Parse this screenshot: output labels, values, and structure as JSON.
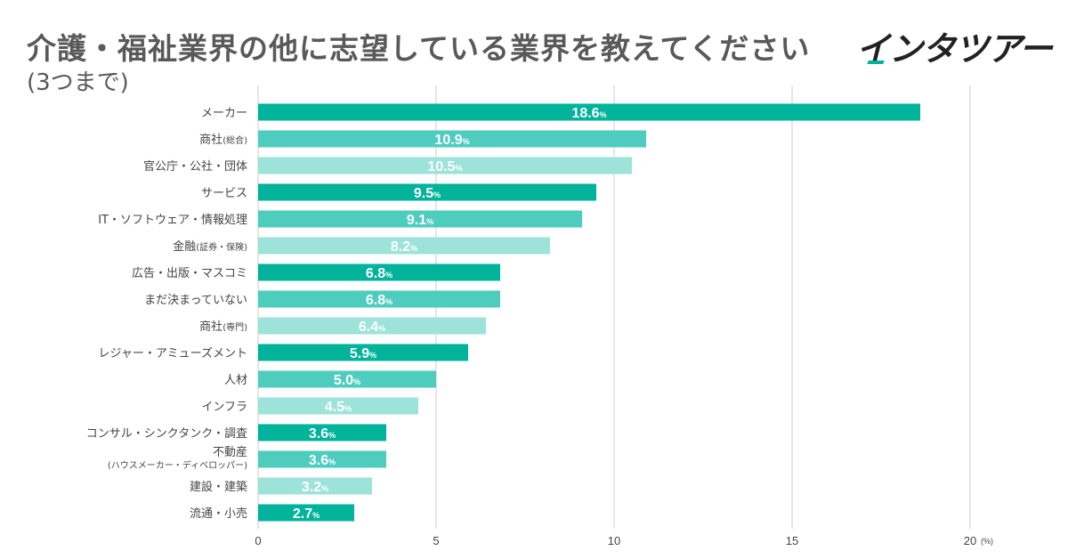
{
  "header": {
    "title": "介護・福祉業界の他に志望している業界を教えてください",
    "subtitle": "(3つまで)",
    "logo_text": "インタツアー"
  },
  "colors": {
    "series": [
      "#00b39a",
      "#4ecdbf",
      "#9de3d9"
    ],
    "grid": "#cccccc",
    "label_text": "#ffffff",
    "logo_accent": "#00b39a"
  },
  "chart_data": {
    "type": "bar",
    "orientation": "horizontal",
    "xlim": [
      0,
      20
    ],
    "x_ticks": [
      "0",
      "5",
      "10",
      "15",
      "20"
    ],
    "x_unit": "(%)",
    "grid": true,
    "value_suffix": "%",
    "categories": [
      {
        "main": "メーカー",
        "paren": ""
      },
      {
        "main": "商社",
        "paren": "(総合)"
      },
      {
        "main": "官公庁・公社・団体",
        "paren": ""
      },
      {
        "main": "サービス",
        "paren": ""
      },
      {
        "main": "IT・ソフトウェア・情報処理",
        "paren": ""
      },
      {
        "main": "金融",
        "paren": "(証券・保険)"
      },
      {
        "main": "広告・出版・マスコミ",
        "paren": ""
      },
      {
        "main": "まだ決まっていない",
        "paren": ""
      },
      {
        "main": "商社",
        "paren": "(専門)"
      },
      {
        "main": "レジャー・アミューズメント",
        "paren": ""
      },
      {
        "main": "人材",
        "paren": ""
      },
      {
        "main": "インフラ",
        "paren": ""
      },
      {
        "main": "コンサル・シンクタンク・調査",
        "paren": ""
      },
      {
        "main": "不動産",
        "paren": "",
        "line2": "(ハウスメーカー・ディベロッパー)"
      },
      {
        "main": "建設・建築",
        "paren": ""
      },
      {
        "main": "流通・小売",
        "paren": ""
      }
    ],
    "values": [
      18.6,
      10.9,
      10.5,
      9.5,
      9.1,
      8.2,
      6.8,
      6.8,
      6.4,
      5.9,
      5.0,
      4.5,
      3.6,
      3.6,
      3.2,
      2.7
    ],
    "value_labels": [
      "18.6",
      "10.9",
      "10.5",
      "9.5",
      "9.1",
      "8.2",
      "6.8",
      "6.8",
      "6.4",
      "5.9",
      "5.0",
      "4.5",
      "3.6",
      "3.6",
      "3.2",
      "2.7"
    ]
  }
}
